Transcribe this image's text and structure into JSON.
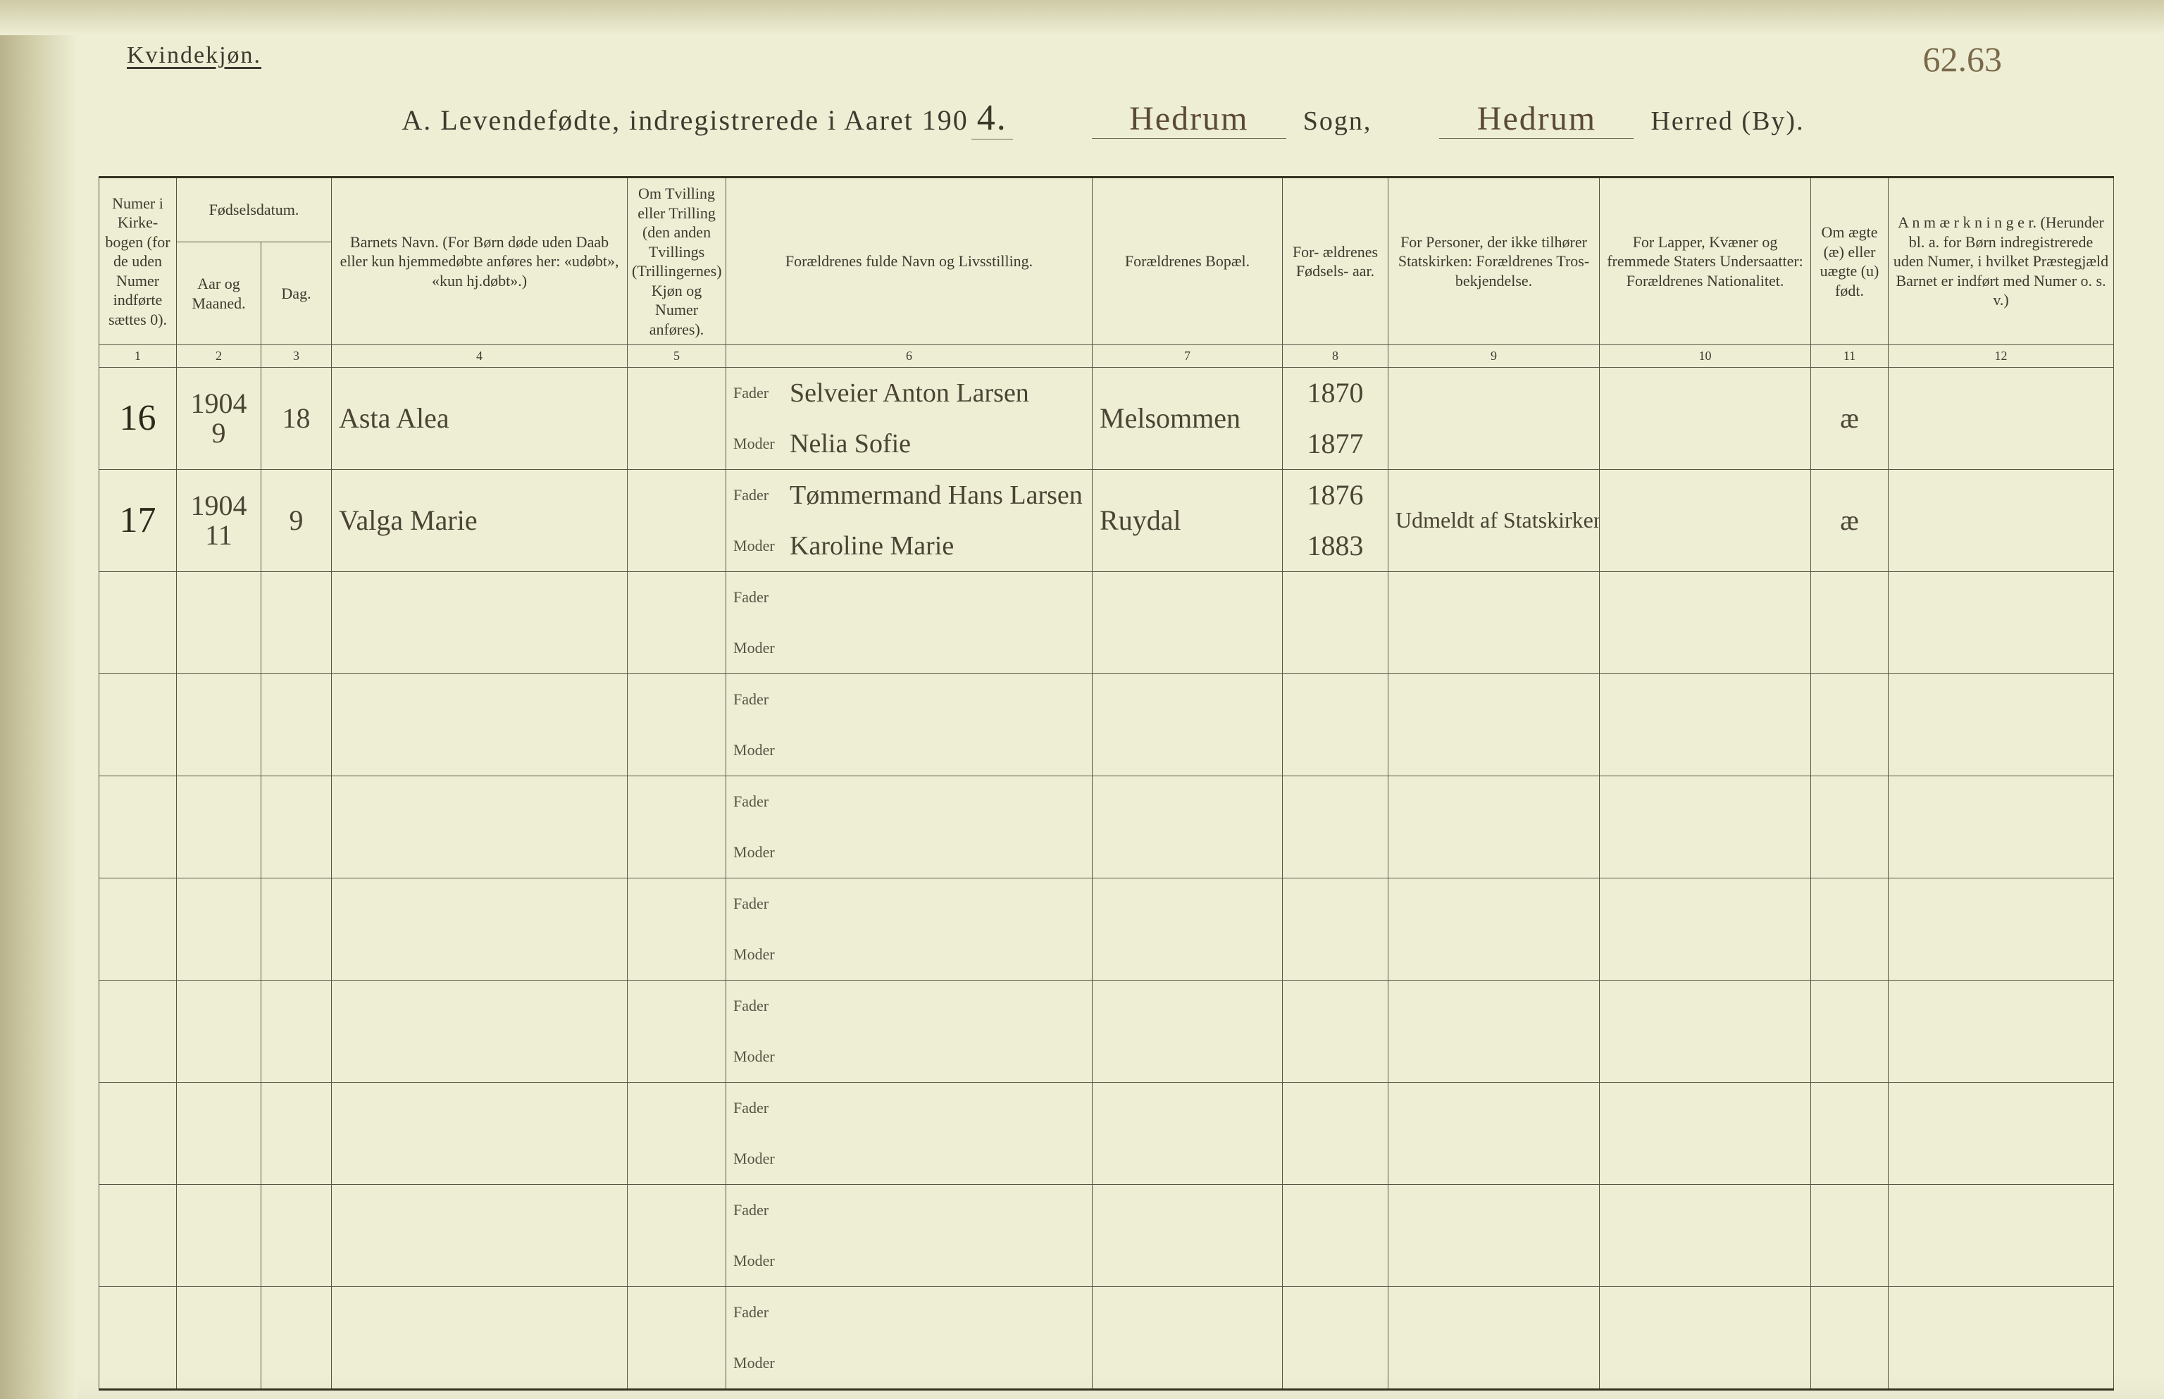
{
  "ink_color": "#4a4433",
  "print_color": "#3b3b2e",
  "rule_color": "#555544",
  "paper_color": "#eeeed5",
  "page_number_handwritten": "62.63",
  "header": {
    "kvinde_label": "Kvindekjøn.",
    "title_prefix": "A.  Levendefødte, indregistrerede i Aaret 190",
    "year_digit": "4.",
    "sogn_name": "Hedrum",
    "sogn_label": "Sogn,",
    "herred_name": "Hedrum",
    "herred_label": "Herred (By)."
  },
  "columns": {
    "c1": "Numer i Kirke- bogen (for de uden Numer indførte sættes 0).",
    "c2_group": "Fødselsdatum.",
    "c2": "Aar og Maaned.",
    "c3": "Dag.",
    "c4": "Barnets Navn.\n(For Børn døde uden Daab eller kun hjemmedøbte anføres her: «udøbt», «kun hj.døbt».)",
    "c5": "Om Tvilling eller Trilling (den anden Tvillings (Trillingernes) Kjøn og Numer anføres).",
    "c6": "Forældrenes fulde Navn og Livsstilling.",
    "c7": "Forældrenes Bopæl.",
    "c8": "For- ældrenes Fødsels- aar.",
    "c9": "For Personer, der ikke tilhører Statskirken: Forældrenes Tros- bekjendelse.",
    "c10": "For Lapper, Kvæner og fremmede Staters Undersaatter: Forældrenes Nationalitet.",
    "c11": "Om ægte (æ) eller uægte (u) født.",
    "c12": "A n m æ r k n i n g e r.\n(Herunder bl. a. for Børn indregistrerede uden Numer, i hvilket Præstegjæld Barnet er indført med Numer o. s. v.)"
  },
  "col_numbers": [
    "1",
    "2",
    "3",
    "4",
    "5",
    "6",
    "7",
    "8",
    "9",
    "10",
    "11",
    "12"
  ],
  "labels": {
    "fader": "Fader",
    "moder": "Moder"
  },
  "rows": [
    {
      "nr": "16",
      "year": "1904",
      "month": "9",
      "day": "18",
      "child_name": "Asta Alea",
      "father": "Selveier Anton Larsen",
      "mother": "Nelia Sofie",
      "residence": "Melsommen",
      "father_birth": "1870",
      "mother_birth": "1877",
      "religion": "",
      "legit": "æ"
    },
    {
      "nr": "17",
      "year": "1904",
      "month": "11",
      "day": "9",
      "child_name": "Valga Marie",
      "father": "Tømmermand Hans Larsen",
      "mother": "Karoline Marie",
      "residence": "Ruydal",
      "father_birth": "1876",
      "mother_birth": "1883",
      "religion": "Udmeldt af Statskirken",
      "legit": "æ"
    }
  ],
  "blank_row_count": 8
}
